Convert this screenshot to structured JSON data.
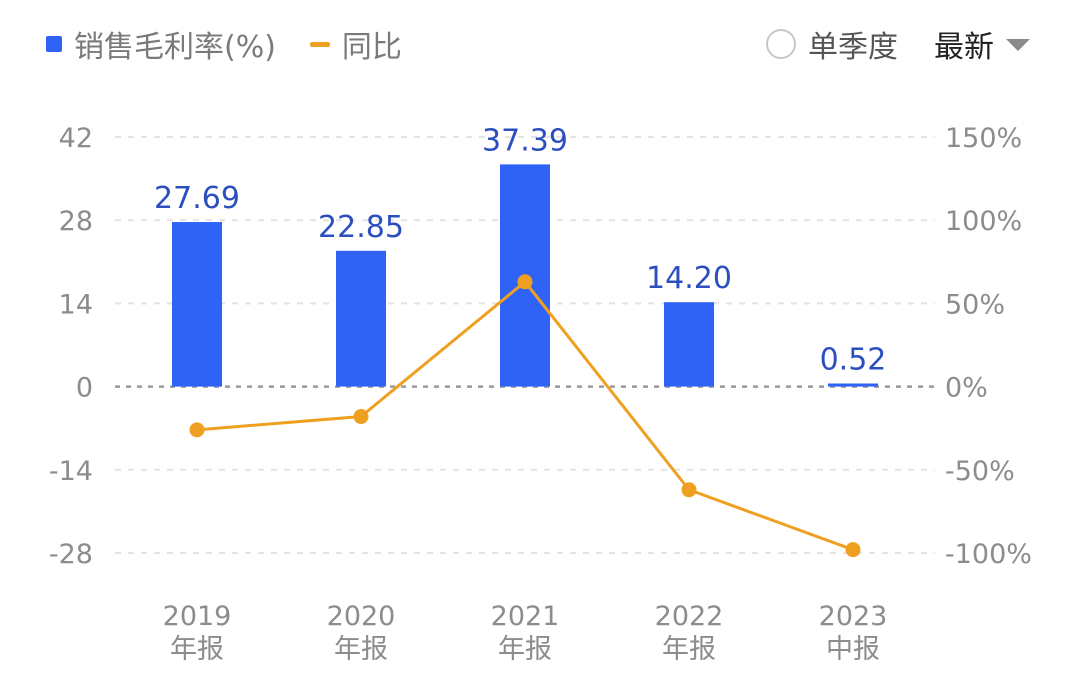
{
  "legend": {
    "bar_label": "销售毛利率(%)",
    "line_label": "同比"
  },
  "controls": {
    "single_quarter_label": "单季度",
    "period_select_label": "最新"
  },
  "colors": {
    "bar": "#2f63f5",
    "line": "#f0a020",
    "data_label": "#2c4fc0"
  },
  "chart_data": {
    "type": "bar",
    "categories": [
      [
        "2019",
        "年报"
      ],
      [
        "2020",
        "年报"
      ],
      [
        "2021",
        "年报"
      ],
      [
        "2022",
        "年报"
      ],
      [
        "2023",
        "中报"
      ]
    ],
    "series": [
      {
        "name": "销售毛利率(%)",
        "type": "bar",
        "axis": "left",
        "values": [
          27.69,
          22.85,
          37.39,
          14.2,
          0.52
        ],
        "labels": [
          "27.69",
          "22.85",
          "37.39",
          "14.20",
          "0.52"
        ]
      },
      {
        "name": "同比",
        "type": "line",
        "axis": "right",
        "values": [
          -26,
          -18,
          63,
          -62,
          -98
        ]
      }
    ],
    "y_left": {
      "ticks": [
        42,
        28,
        14,
        0,
        -14,
        -28
      ],
      "tick_labels": [
        "42",
        "28",
        "14",
        "0",
        "-14",
        "-28"
      ],
      "ylim": [
        -28,
        42
      ]
    },
    "y_right": {
      "ticks": [
        150,
        100,
        50,
        0,
        -50,
        -100
      ],
      "tick_labels": [
        "150%",
        "100%",
        "50%",
        "0%",
        "-50%",
        "-100%"
      ],
      "ylim": [
        -100,
        150
      ]
    },
    "grid": true
  }
}
